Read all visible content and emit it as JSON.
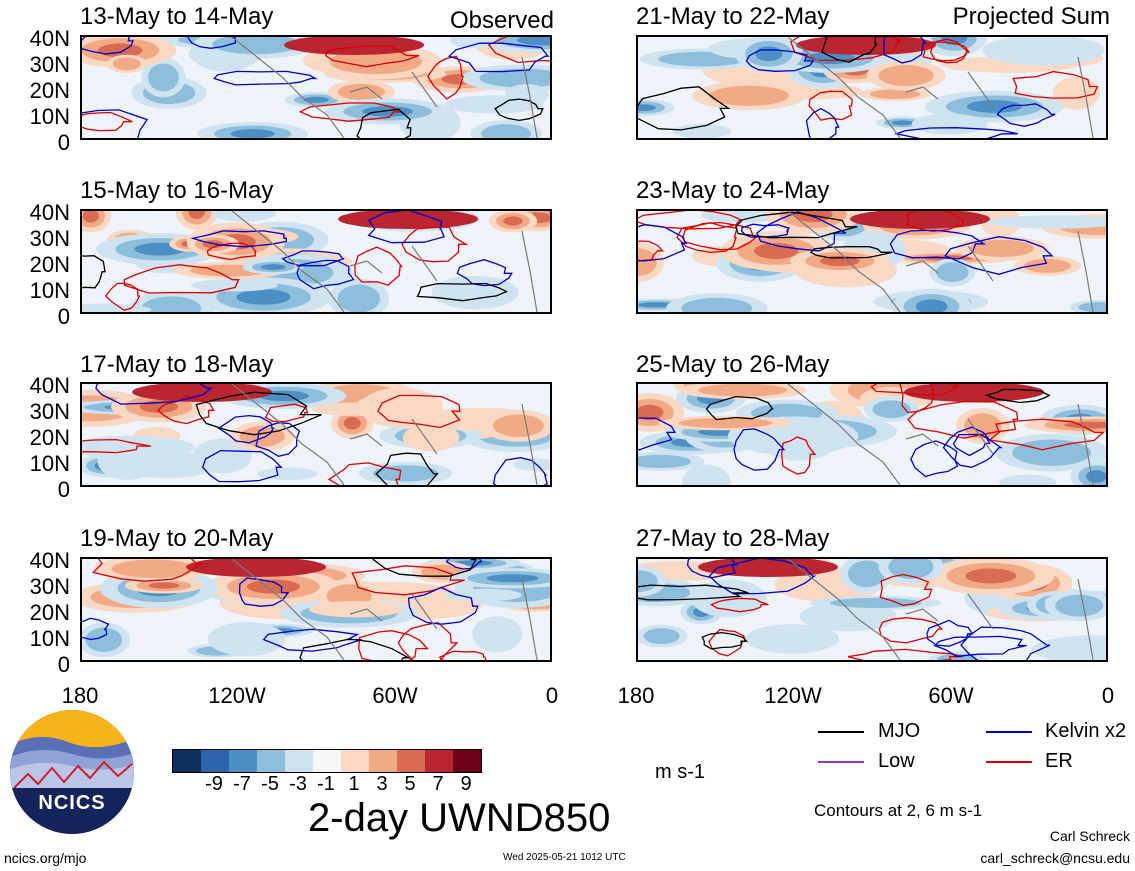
{
  "panels": [
    {
      "title": "13-May to 14-May",
      "corner": "Observed"
    },
    {
      "title": "15-May to 16-May",
      "corner": ""
    },
    {
      "title": "17-May to 18-May",
      "corner": ""
    },
    {
      "title": "19-May to 20-May",
      "corner": ""
    },
    {
      "title": "21-May to 22-May",
      "corner": "Projected Sum"
    },
    {
      "title": "23-May to 24-May",
      "corner": ""
    },
    {
      "title": "25-May to 26-May",
      "corner": ""
    },
    {
      "title": "27-May to 28-May",
      "corner": ""
    }
  ],
  "lat_labels": [
    "40N",
    "30N",
    "20N",
    "10N",
    "0"
  ],
  "lon_labels": [
    "180",
    "120W",
    "60W",
    "0"
  ],
  "colorbar": {
    "colors": [
      "#0d2f5e",
      "#2b64a8",
      "#4b8fc4",
      "#8dbfdc",
      "#cfe3f0",
      "#f7f7f7",
      "#f9d8c4",
      "#f2a986",
      "#da6b53",
      "#b92531",
      "#6b0019"
    ],
    "ticks": [
      "-9",
      "-7",
      "-5",
      "-3",
      "-1",
      "1",
      "3",
      "5",
      "7",
      "9"
    ],
    "units": "m s-1",
    "title": "2-day UWND850"
  },
  "legend": {
    "items": [
      {
        "label": "MJO",
        "color": "#000000"
      },
      {
        "label": "Kelvin x2",
        "color": "#0000cc"
      },
      {
        "label": "Low",
        "color": "#9933cc"
      },
      {
        "label": "ER",
        "color": "#dd0000"
      }
    ],
    "contours_note": "Contours at 2, 6 m s-1"
  },
  "footer": {
    "website": "ncics.org/mjo",
    "timestamp": "Wed 2025-05-21 1012 UTC",
    "author": "Carl Schreck",
    "email": "carl_schreck@ncsu.edu",
    "logo_text": "NCICS"
  }
}
